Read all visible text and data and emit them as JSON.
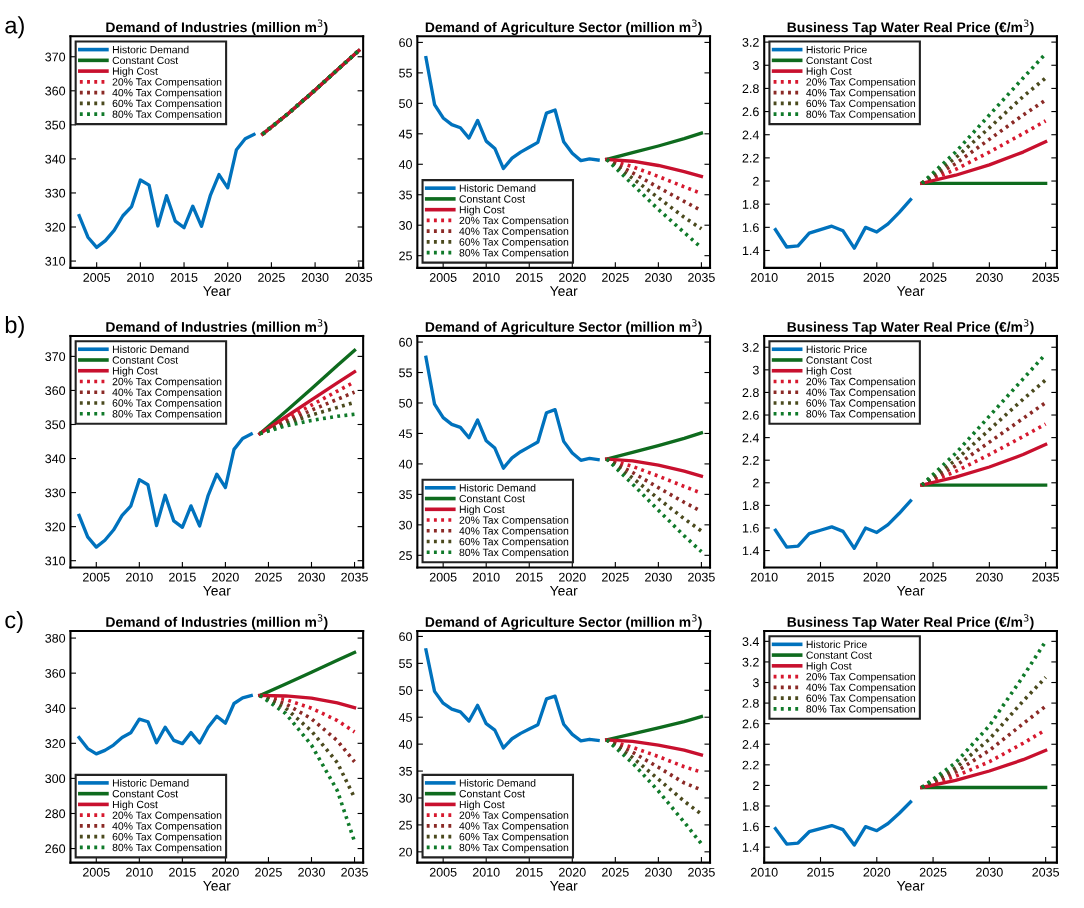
{
  "chart_data": [
    {
      "type": "line",
      "title": "Demand of Industries (million m$^{3}$)",
      "xlabel": "Year",
      "annotations": [
        "a)"
      ],
      "xlim": [
        2002,
        2035.5
      ],
      "xticks": [
        2005,
        2010,
        2015,
        2020,
        2025,
        2030,
        2035
      ],
      "ylim": [
        308,
        376
      ],
      "yticks": [
        310,
        320,
        330,
        340,
        350,
        360,
        370
      ],
      "legend": "top left",
      "grid": false,
      "series": [
        {
          "name": "Historic Demand",
          "color": "#0072bd",
          "line_style": "solid",
          "x": [
            2003,
            2004,
            2005,
            2006,
            2007,
            2008,
            2009,
            2010,
            2011,
            2012,
            2013,
            2014,
            2015,
            2016,
            2017,
            2018,
            2019,
            2020,
            2021,
            2022,
            2023
          ],
          "values": [
            323.3,
            317,
            314,
            316,
            319,
            323.3,
            326,
            333.8,
            332.3,
            320.3,
            329.2,
            321.7,
            319.8,
            326.1,
            320.2,
            329.2,
            335.4,
            331.5,
            342.7,
            345.9,
            347.2
          ]
        },
        {
          "name": "Constant Cost",
          "color": "#0e6b1e",
          "line_style": "solid",
          "x": [
            2024,
            2027,
            2030,
            2033,
            2035
          ],
          "values": [
            347.3,
            353.5,
            360.2,
            367.2,
            371.8
          ]
        },
        {
          "name": "High Cost",
          "color": "#c8102e",
          "line_style": "solid",
          "x": [
            2024,
            2027,
            2030,
            2033,
            2035
          ],
          "values": [
            347.3,
            353.5,
            360.2,
            367.2,
            371.8
          ]
        },
        {
          "name": "20% Tax Compensation",
          "color": "#d7192f",
          "line_style": "dotted",
          "x": [
            2024,
            2027,
            2030,
            2033,
            2035
          ],
          "values": [
            347.3,
            353.5,
            360.2,
            367.2,
            371.8
          ]
        },
        {
          "name": "40% Tax Compensation",
          "color": "#8b2a26",
          "line_style": "dotted",
          "x": [
            2024,
            2027,
            2030,
            2033,
            2035
          ],
          "values": [
            347.3,
            353.5,
            360.2,
            367.2,
            371.8
          ]
        },
        {
          "name": "60% Tax Compensation",
          "color": "#4b4a1e",
          "line_style": "dotted",
          "x": [
            2024,
            2027,
            2030,
            2033,
            2035
          ],
          "values": [
            347.3,
            353.5,
            360.2,
            367.2,
            371.8
          ]
        },
        {
          "name": "80% Tax Compensation",
          "color": "#107a2a",
          "line_style": "dotted",
          "x": [
            2024,
            2027,
            2030,
            2033,
            2035
          ],
          "values": [
            347.3,
            353.5,
            360.2,
            367.2,
            371.8
          ]
        }
      ]
    },
    {
      "type": "line",
      "title": "Demand of Agriculture Sector (million m$^{3}$)",
      "xlabel": "Year",
      "xlim": [
        2002,
        2036
      ],
      "xticks": [
        2005,
        2010,
        2015,
        2020,
        2025,
        2030,
        2035
      ],
      "ylim": [
        23,
        61
      ],
      "yticks": [
        25,
        30,
        35,
        40,
        45,
        50,
        55,
        60
      ],
      "legend": "bottom left",
      "grid": false,
      "series": [
        {
          "name": "Historic Demand",
          "color": "#0072bd",
          "line_style": "solid",
          "x": [
            2003,
            2004,
            2005,
            2006,
            2007,
            2008,
            2009,
            2010,
            2011,
            2012,
            2013,
            2014,
            2015,
            2016,
            2017,
            2018,
            2019,
            2020,
            2021,
            2022,
            2023
          ],
          "values": [
            57.5,
            49.8,
            47.6,
            46.5,
            46,
            44.3,
            47.2,
            43.8,
            42.6,
            39.3,
            41,
            42,
            42.8,
            43.6,
            48.4,
            48.9,
            43.7,
            41.8,
            40.6,
            40.9,
            40.7
          ]
        },
        {
          "name": "Constant Cost",
          "color": "#0e6b1e",
          "line_style": "solid",
          "x": [
            2024,
            2027,
            2030,
            2033,
            2035
          ],
          "values": [
            40.8,
            41.9,
            43.0,
            44.2,
            45.1
          ]
        },
        {
          "name": "High Cost",
          "color": "#c8102e",
          "line_style": "solid",
          "x": [
            2024,
            2027,
            2030,
            2033,
            2035
          ],
          "values": [
            40.8,
            40.5,
            39.8,
            38.8,
            38.0
          ]
        },
        {
          "name": "20% Tax Compensation",
          "color": "#d7192f",
          "line_style": "dotted",
          "x": [
            2024,
            2027,
            2030,
            2033,
            2035
          ],
          "values": [
            40.8,
            39.6,
            38.0,
            36.3,
            35.2
          ]
        },
        {
          "name": "40% Tax Compensation",
          "color": "#8b2a26",
          "line_style": "dotted",
          "x": [
            2024,
            2027,
            2030,
            2033,
            2035
          ],
          "values": [
            40.8,
            38.6,
            36.2,
            33.9,
            32.4
          ]
        },
        {
          "name": "60% Tax Compensation",
          "color": "#4b4a1e",
          "line_style": "dotted",
          "x": [
            2024,
            2027,
            2030,
            2033,
            2035
          ],
          "values": [
            40.8,
            37.7,
            34.5,
            31.3,
            29.4
          ]
        },
        {
          "name": "80% Tax Compensation",
          "color": "#107a2a",
          "line_style": "dotted",
          "x": [
            2024,
            2027,
            2030,
            2033,
            2035
          ],
          "values": [
            40.8,
            36.7,
            32.6,
            28.8,
            26.3
          ]
        }
      ]
    },
    {
      "type": "line",
      "title": "Business Tap Water Real Price (€/m$^{3}$)",
      "xlabel": "Year",
      "xlim": [
        2010,
        2036
      ],
      "xticks": [
        2010,
        2015,
        2020,
        2025,
        2030,
        2035
      ],
      "ylim": [
        1.25,
        3.25
      ],
      "yticks": [
        1.4,
        1.6,
        1.8,
        2,
        2.2,
        2.4,
        2.6,
        2.8,
        3,
        3.2
      ],
      "legend": "top left",
      "grid": false,
      "series": [
        {
          "name": "Historic Price",
          "color": "#0072bd",
          "line_style": "solid",
          "x": [
            2011,
            2012,
            2013,
            2014,
            2015,
            2016,
            2017,
            2018,
            2019,
            2020,
            2021,
            2022,
            2023
          ],
          "values": [
            1.58,
            1.43,
            1.44,
            1.55,
            1.58,
            1.61,
            1.57,
            1.42,
            1.6,
            1.56,
            1.63,
            1.73,
            1.84
          ]
        },
        {
          "name": "Constant Cost",
          "color": "#0e6b1e",
          "line_style": "solid",
          "x": [
            2024,
            2035
          ],
          "values": [
            1.98,
            1.98
          ]
        },
        {
          "name": "High Cost",
          "color": "#c8102e",
          "line_style": "solid",
          "x": [
            2024,
            2027,
            2030,
            2033,
            2035
          ],
          "values": [
            1.98,
            2.05,
            2.14,
            2.25,
            2.34
          ]
        },
        {
          "name": "20% Tax Compensation",
          "color": "#d7192f",
          "line_style": "dotted",
          "x": [
            2024,
            2027,
            2030,
            2033,
            2035
          ],
          "values": [
            1.98,
            2.1,
            2.25,
            2.41,
            2.52
          ]
        },
        {
          "name": "40% Tax Compensation",
          "color": "#8b2a26",
          "line_style": "dotted",
          "x": [
            2024,
            2027,
            2030,
            2033,
            2035
          ],
          "values": [
            1.98,
            2.15,
            2.36,
            2.57,
            2.7
          ]
        },
        {
          "name": "60% Tax Compensation",
          "color": "#4b4a1e",
          "line_style": "dotted",
          "x": [
            2024,
            2027,
            2030,
            2033,
            2035
          ],
          "values": [
            1.98,
            2.2,
            2.46,
            2.73,
            2.89
          ]
        },
        {
          "name": "80% Tax Compensation",
          "color": "#107a2a",
          "line_style": "dotted",
          "x": [
            2024,
            2027,
            2030,
            2033,
            2035
          ],
          "values": [
            1.98,
            2.25,
            2.57,
            2.89,
            3.1
          ]
        }
      ]
    },
    {
      "type": "line",
      "title": "Demand of Industries (million m$^{3}$)",
      "xlabel": "Year",
      "annotations": [
        "b)"
      ],
      "xlim": [
        2002,
        2036
      ],
      "xticks": [
        2005,
        2010,
        2015,
        2020,
        2025,
        2030,
        2035
      ],
      "ylim": [
        308,
        376
      ],
      "yticks": [
        310,
        320,
        330,
        340,
        350,
        360,
        370
      ],
      "legend": "top left",
      "grid": false,
      "series": [
        {
          "name": "Historic Demand",
          "color": "#0072bd",
          "line_style": "solid",
          "x": [
            2003,
            2004,
            2005,
            2006,
            2007,
            2008,
            2009,
            2010,
            2011,
            2012,
            2013,
            2014,
            2015,
            2016,
            2017,
            2018,
            2019,
            2020,
            2021,
            2022,
            2023
          ],
          "values": [
            323.3,
            317,
            314,
            316,
            319,
            323.3,
            326,
            333.8,
            332.3,
            320.3,
            329.2,
            321.7,
            319.8,
            326.1,
            320.2,
            329.2,
            335.4,
            331.5,
            342.7,
            345.9,
            347.2
          ]
        },
        {
          "name": "Constant Cost",
          "color": "#0e6b1e",
          "line_style": "solid",
          "x": [
            2024,
            2027,
            2030,
            2033,
            2035
          ],
          "values": [
            347.3,
            353.8,
            360.5,
            367.3,
            371.8
          ]
        },
        {
          "name": "High Cost",
          "color": "#c8102e",
          "line_style": "solid",
          "x": [
            2024,
            2027,
            2030,
            2033,
            2035
          ],
          "values": [
            347.3,
            352.2,
            357.2,
            362.2,
            365.5
          ]
        },
        {
          "name": "20% Tax Compensation",
          "color": "#d7192f",
          "line_style": "dotted",
          "x": [
            2024,
            2027,
            2030,
            2033,
            2035
          ],
          "values": [
            347.3,
            351.5,
            355.7,
            359.8,
            362.5
          ]
        },
        {
          "name": "40% Tax Compensation",
          "color": "#8b2a26",
          "line_style": "dotted",
          "x": [
            2024,
            2027,
            2030,
            2033,
            2035
          ],
          "values": [
            347.3,
            350.8,
            354.2,
            357.4,
            359.5
          ]
        },
        {
          "name": "60% Tax Compensation",
          "color": "#4b4a1e",
          "line_style": "dotted",
          "x": [
            2024,
            2027,
            2030,
            2033,
            2035
          ],
          "values": [
            347.3,
            350.2,
            352.8,
            355.0,
            356.5
          ]
        },
        {
          "name": "80% Tax Compensation",
          "color": "#107a2a",
          "line_style": "dotted",
          "x": [
            2024,
            2027,
            2030,
            2033,
            2035
          ],
          "values": [
            347.3,
            349.6,
            351.2,
            352.4,
            353.0
          ]
        }
      ]
    },
    {
      "type": "line",
      "title": "Demand of Agriculture Sector (million m$^{3}$)",
      "xlabel": "Year",
      "xlim": [
        2002,
        2036
      ],
      "xticks": [
        2005,
        2010,
        2015,
        2020,
        2025,
        2030,
        2035
      ],
      "ylim": [
        23,
        61
      ],
      "yticks": [
        25,
        30,
        35,
        40,
        45,
        50,
        55,
        60
      ],
      "legend": "bottom left",
      "grid": false,
      "series": [
        {
          "name": "Historic Demand",
          "color": "#0072bd",
          "line_style": "solid",
          "x": [
            2003,
            2004,
            2005,
            2006,
            2007,
            2008,
            2009,
            2010,
            2011,
            2012,
            2013,
            2014,
            2015,
            2016,
            2017,
            2018,
            2019,
            2020,
            2021,
            2022,
            2023
          ],
          "values": [
            57.5,
            49.8,
            47.6,
            46.5,
            46,
            44.3,
            47.2,
            43.8,
            42.6,
            39.3,
            41,
            42,
            42.8,
            43.6,
            48.4,
            48.9,
            43.7,
            41.8,
            40.6,
            40.9,
            40.7
          ]
        },
        {
          "name": "Constant Cost",
          "color": "#0e6b1e",
          "line_style": "solid",
          "x": [
            2024,
            2027,
            2030,
            2033,
            2035
          ],
          "values": [
            40.8,
            41.9,
            43.0,
            44.2,
            45.1
          ]
        },
        {
          "name": "High Cost",
          "color": "#c8102e",
          "line_style": "solid",
          "x": [
            2024,
            2027,
            2030,
            2033,
            2035
          ],
          "values": [
            40.8,
            40.5,
            39.8,
            38.8,
            38.0
          ]
        },
        {
          "name": "20% Tax Compensation",
          "color": "#d7192f",
          "line_style": "dotted",
          "x": [
            2024,
            2027,
            2030,
            2033,
            2035
          ],
          "values": [
            40.8,
            39.6,
            38.0,
            36.3,
            35.2
          ]
        },
        {
          "name": "40% Tax Compensation",
          "color": "#8b2a26",
          "line_style": "dotted",
          "x": [
            2024,
            2027,
            2030,
            2033,
            2035
          ],
          "values": [
            40.8,
            38.6,
            36.1,
            33.7,
            32.2
          ]
        },
        {
          "name": "60% Tax Compensation",
          "color": "#4b4a1e",
          "line_style": "dotted",
          "x": [
            2024,
            2027,
            2030,
            2033,
            2035
          ],
          "values": [
            40.8,
            37.7,
            34.3,
            31.0,
            29.0
          ]
        },
        {
          "name": "80% Tax Compensation",
          "color": "#107a2a",
          "line_style": "dotted",
          "x": [
            2024,
            2027,
            2030,
            2033,
            2035
          ],
          "values": [
            40.8,
            36.7,
            32.4,
            28.2,
            25.6
          ]
        }
      ]
    },
    {
      "type": "line",
      "title": "Business Tap Water Real Price (€/m$^{3}$)",
      "xlabel": "Year",
      "xlim": [
        2010,
        2036
      ],
      "xticks": [
        2010,
        2015,
        2020,
        2025,
        2030,
        2035
      ],
      "ylim": [
        1.25,
        3.3
      ],
      "yticks": [
        1.4,
        1.6,
        1.8,
        2,
        2.2,
        2.4,
        2.6,
        2.8,
        3,
        3.2
      ],
      "legend": "top left",
      "grid": false,
      "series": [
        {
          "name": "Historic Price",
          "color": "#0072bd",
          "line_style": "solid",
          "x": [
            2011,
            2012,
            2013,
            2014,
            2015,
            2016,
            2017,
            2018,
            2019,
            2020,
            2021,
            2022,
            2023
          ],
          "values": [
            1.58,
            1.43,
            1.44,
            1.55,
            1.58,
            1.61,
            1.57,
            1.42,
            1.6,
            1.56,
            1.63,
            1.73,
            1.84
          ]
        },
        {
          "name": "Constant Cost",
          "color": "#0e6b1e",
          "line_style": "solid",
          "x": [
            2024,
            2035
          ],
          "values": [
            1.98,
            1.98
          ]
        },
        {
          "name": "High Cost",
          "color": "#c8102e",
          "line_style": "solid",
          "x": [
            2024,
            2027,
            2030,
            2033,
            2035
          ],
          "values": [
            1.98,
            2.05,
            2.14,
            2.25,
            2.34
          ]
        },
        {
          "name": "20% Tax Compensation",
          "color": "#d7192f",
          "line_style": "dotted",
          "x": [
            2024,
            2027,
            2030,
            2033,
            2035
          ],
          "values": [
            1.98,
            2.1,
            2.25,
            2.41,
            2.52
          ]
        },
        {
          "name": "40% Tax Compensation",
          "color": "#8b2a26",
          "line_style": "dotted",
          "x": [
            2024,
            2027,
            2030,
            2033,
            2035
          ],
          "values": [
            1.98,
            2.15,
            2.36,
            2.57,
            2.71
          ]
        },
        {
          "name": "60% Tax Compensation",
          "color": "#4b4a1e",
          "line_style": "dotted",
          "x": [
            2024,
            2027,
            2030,
            2033,
            2035
          ],
          "values": [
            1.98,
            2.2,
            2.47,
            2.74,
            2.91
          ]
        },
        {
          "name": "80% Tax Compensation",
          "color": "#107a2a",
          "line_style": "dotted",
          "x": [
            2024,
            2027,
            2030,
            2033,
            2035
          ],
          "values": [
            1.98,
            2.26,
            2.59,
            2.92,
            3.14
          ]
        }
      ]
    },
    {
      "type": "line",
      "title": "Demand of Industries (million m$^{3}$)",
      "xlabel": "Year",
      "annotations": [
        "c)"
      ],
      "xlim": [
        2002,
        2036
      ],
      "xticks": [
        2005,
        2010,
        2015,
        2020,
        2025,
        2030,
        2035
      ],
      "ylim": [
        252,
        384
      ],
      "yticks": [
        260,
        280,
        300,
        320,
        340,
        360,
        380
      ],
      "legend": "bottom left",
      "grid": false,
      "series": [
        {
          "name": "Historic Demand",
          "color": "#0072bd",
          "line_style": "solid",
          "x": [
            2003,
            2004,
            2005,
            2006,
            2007,
            2008,
            2009,
            2010,
            2011,
            2012,
            2013,
            2014,
            2015,
            2016,
            2017,
            2018,
            2019,
            2020,
            2021,
            2022,
            2023
          ],
          "values": [
            323.3,
            317,
            314,
            316,
            319,
            323.3,
            326,
            333.8,
            332.3,
            320.3,
            329.2,
            321.7,
            319.8,
            326.1,
            320.2,
            329.2,
            335.4,
            331.5,
            342.7,
            345.9,
            347.2
          ]
        },
        {
          "name": "Constant Cost",
          "color": "#0e6b1e",
          "line_style": "solid",
          "x": [
            2024,
            2027,
            2030,
            2033,
            2035
          ],
          "values": [
            347.3,
            353.8,
            360.5,
            367.3,
            371.8
          ]
        },
        {
          "name": "High Cost",
          "color": "#c8102e",
          "line_style": "solid",
          "x": [
            2024,
            2027,
            2030,
            2033,
            2035
          ],
          "values": [
            347.3,
            347,
            345.8,
            343,
            340.3
          ]
        },
        {
          "name": "20% Tax Compensation",
          "color": "#d7192f",
          "line_style": "dotted",
          "x": [
            2024,
            2027,
            2030,
            2033,
            2035
          ],
          "values": [
            347.3,
            345,
            340,
            333,
            326.5
          ]
        },
        {
          "name": "40% Tax Compensation",
          "color": "#8b2a26",
          "line_style": "dotted",
          "x": [
            2024,
            2027,
            2030,
            2033,
            2035
          ],
          "values": [
            347.3,
            342.5,
            334,
            321.5,
            309.5
          ]
        },
        {
          "name": "60% Tax Compensation",
          "color": "#4b4a1e",
          "line_style": "dotted",
          "x": [
            2024,
            2027,
            2030,
            2033,
            2035
          ],
          "values": [
            347.3,
            340,
            327,
            309,
            289
          ]
        },
        {
          "name": "80% Tax Compensation",
          "color": "#107a2a",
          "line_style": "dotted",
          "x": [
            2024,
            2027,
            2030,
            2033,
            2035
          ],
          "values": [
            347.3,
            337,
            319,
            293,
            264
          ]
        }
      ]
    },
    {
      "type": "line",
      "title": "Demand of Agriculture Sector (million m$^{3}$)",
      "xlabel": "Year",
      "xlim": [
        2002,
        2036
      ],
      "xticks": [
        2005,
        2010,
        2015,
        2020,
        2025,
        2030,
        2035
      ],
      "ylim": [
        18,
        61
      ],
      "yticks": [
        20,
        25,
        30,
        35,
        40,
        45,
        50,
        55,
        60
      ],
      "legend": "bottom left",
      "grid": false,
      "series": [
        {
          "name": "Historic Demand",
          "color": "#0072bd",
          "line_style": "solid",
          "x": [
            2003,
            2004,
            2005,
            2006,
            2007,
            2008,
            2009,
            2010,
            2011,
            2012,
            2013,
            2014,
            2015,
            2016,
            2017,
            2018,
            2019,
            2020,
            2021,
            2022,
            2023
          ],
          "values": [
            57.5,
            49.8,
            47.6,
            46.5,
            46,
            44.3,
            47.2,
            43.8,
            42.6,
            39.3,
            41,
            42,
            42.8,
            43.6,
            48.4,
            48.9,
            43.7,
            41.8,
            40.6,
            40.9,
            40.7
          ]
        },
        {
          "name": "Constant Cost",
          "color": "#0e6b1e",
          "line_style": "solid",
          "x": [
            2024,
            2027,
            2030,
            2033,
            2035
          ],
          "values": [
            40.8,
            41.9,
            43.0,
            44.2,
            45.1
          ]
        },
        {
          "name": "High Cost",
          "color": "#c8102e",
          "line_style": "solid",
          "x": [
            2024,
            2027,
            2030,
            2033,
            2035
          ],
          "values": [
            40.8,
            40.5,
            39.8,
            38.9,
            38.0
          ]
        },
        {
          "name": "20% Tax Compensation",
          "color": "#d7192f",
          "line_style": "dotted",
          "x": [
            2024,
            2027,
            2030,
            2033,
            2035
          ],
          "values": [
            40.8,
            39.4,
            37.7,
            35.8,
            34.8
          ]
        },
        {
          "name": "40% Tax Compensation",
          "color": "#8b2a26",
          "line_style": "dotted",
          "x": [
            2024,
            2027,
            2030,
            2033,
            2035
          ],
          "values": [
            40.8,
            38.5,
            35.7,
            32.8,
            31.5
          ]
        },
        {
          "name": "60% Tax Compensation",
          "color": "#4b4a1e",
          "line_style": "dotted",
          "x": [
            2024,
            2027,
            2030,
            2033,
            2035
          ],
          "values": [
            40.8,
            37.5,
            33.5,
            29.4,
            27
          ]
        },
        {
          "name": "80% Tax Compensation",
          "color": "#107a2a",
          "line_style": "dotted",
          "x": [
            2024,
            2027,
            2030,
            2033,
            2035
          ],
          "values": [
            40.8,
            36.5,
            31.3,
            25.5,
            21.5
          ]
        }
      ]
    },
    {
      "type": "line",
      "title": "Business Tap Water Real Price (€/m$^{3}$)",
      "xlabel": "Year",
      "xlim": [
        2010,
        2036
      ],
      "xticks": [
        2010,
        2015,
        2020,
        2025,
        2030,
        2035
      ],
      "ylim": [
        1.25,
        3.5
      ],
      "yticks": [
        1.4,
        1.6,
        1.8,
        2,
        2.2,
        2.4,
        2.6,
        2.8,
        3,
        3.2,
        3.4
      ],
      "legend": "top left",
      "grid": false,
      "series": [
        {
          "name": "Historic Price",
          "color": "#0072bd",
          "line_style": "solid",
          "x": [
            2011,
            2012,
            2013,
            2014,
            2015,
            2016,
            2017,
            2018,
            2019,
            2020,
            2021,
            2022,
            2023
          ],
          "values": [
            1.58,
            1.43,
            1.44,
            1.55,
            1.58,
            1.61,
            1.57,
            1.42,
            1.6,
            1.56,
            1.63,
            1.73,
            1.84
          ]
        },
        {
          "name": "Constant Cost",
          "color": "#0e6b1e",
          "line_style": "solid",
          "x": [
            2024,
            2035
          ],
          "values": [
            1.98,
            1.98
          ]
        },
        {
          "name": "High Cost",
          "color": "#c8102e",
          "line_style": "solid",
          "x": [
            2024,
            2027,
            2030,
            2033,
            2035
          ],
          "values": [
            1.98,
            2.05,
            2.14,
            2.25,
            2.34
          ]
        },
        {
          "name": "20% Tax Compensation",
          "color": "#d7192f",
          "line_style": "dotted",
          "x": [
            2024,
            2027,
            2030,
            2033,
            2035
          ],
          "values": [
            1.98,
            2.09,
            2.23,
            2.41,
            2.54
          ]
        },
        {
          "name": "40% Tax Compensation",
          "color": "#8b2a26",
          "line_style": "dotted",
          "x": [
            2024,
            2027,
            2030,
            2033,
            2035
          ],
          "values": [
            1.98,
            2.13,
            2.34,
            2.6,
            2.77
          ]
        },
        {
          "name": "60% Tax Compensation",
          "color": "#4b4a1e",
          "line_style": "dotted",
          "x": [
            2024,
            2027,
            2030,
            2033,
            2035
          ],
          "values": [
            1.98,
            2.17,
            2.45,
            2.82,
            3.05
          ]
        },
        {
          "name": "80% Tax Compensation",
          "color": "#107a2a",
          "line_style": "dotted",
          "x": [
            2024,
            2027,
            2030,
            2033,
            2035
          ],
          "values": [
            1.98,
            2.22,
            2.58,
            3.06,
            3.4
          ]
        }
      ]
    }
  ]
}
